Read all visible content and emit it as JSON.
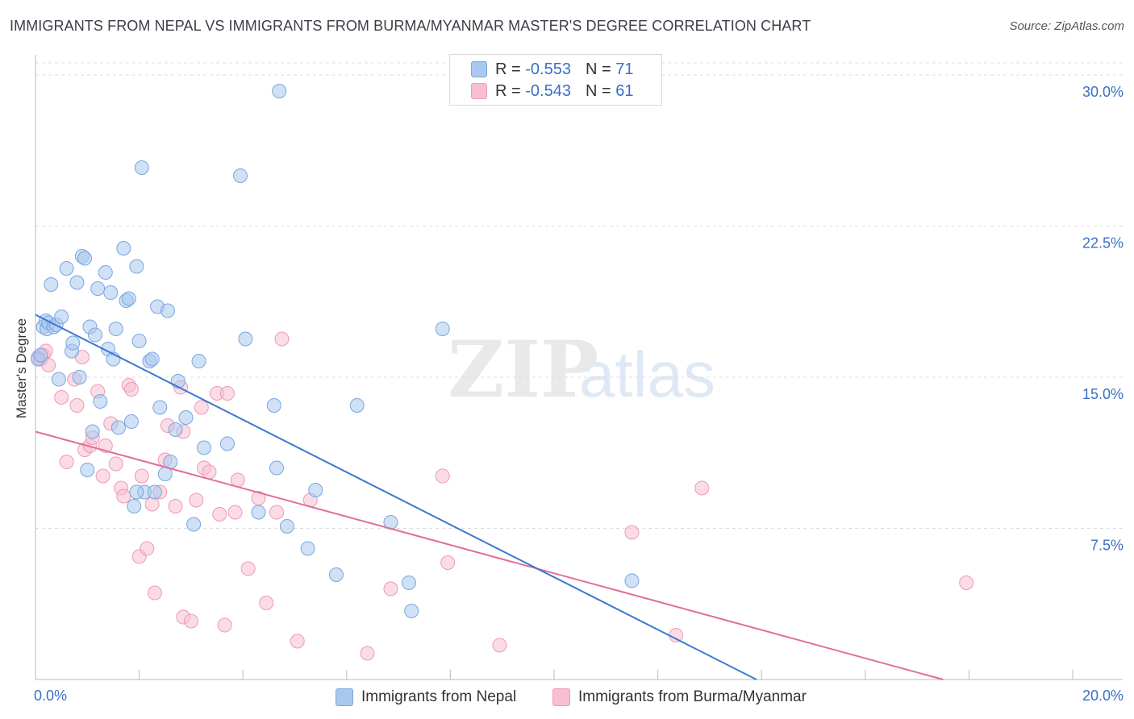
{
  "title": "IMMIGRANTS FROM NEPAL VS IMMIGRANTS FROM BURMA/MYANMAR MASTER'S DEGREE CORRELATION CHART",
  "source": "Source: ZipAtlas.com",
  "watermark": {
    "zip": "ZIP",
    "atlas": "atlas"
  },
  "legend": {
    "nepal": {
      "r_label": "R =",
      "r_value": "-0.553",
      "n_label": "N =",
      "n_value": "71"
    },
    "burma": {
      "r_label": "R =",
      "r_value": "-0.543",
      "n_label": "N =",
      "n_value": "61"
    }
  },
  "bottom_legend": {
    "nepal": "Immigrants from Nepal",
    "burma": "Immigrants from Burma/Myanmar"
  },
  "colors": {
    "nepal_fill": "#aac8ef",
    "nepal_stroke": "#7aa6e0",
    "nepal_line": "#3a78d2",
    "burma_fill": "#f7bfd0",
    "burma_stroke": "#ee9ab6",
    "burma_line": "#e06f9a",
    "grid": "#dddddd",
    "tick_label": "#3a6fc4"
  },
  "chart_data": {
    "type": "scatter",
    "title": "IMMIGRANTS FROM NEPAL VS IMMIGRANTS FROM BURMA/MYANMAR MASTER'S DEGREE CORRELATION CHART",
    "xlabel": "",
    "ylabel": "Master's Degree",
    "xlim": [
      0,
      20
    ],
    "ylim": [
      0,
      31
    ],
    "x_tick_labels": [
      "0.0%",
      "20.0%"
    ],
    "y_ticks": [
      7.5,
      15.0,
      22.5,
      30.0
    ],
    "y_tick_labels": [
      "7.5%",
      "15.0%",
      "22.5%",
      "30.0%"
    ],
    "grid": true,
    "legend_position": "top-center",
    "series": [
      {
        "name": "Immigrants from Nepal",
        "trend": {
          "x": [
            0.0,
            13.9
          ],
          "y": [
            18.1,
            0.0
          ]
        },
        "points": [
          [
            0.05,
            15.9
          ],
          [
            0.1,
            16.1
          ],
          [
            0.15,
            17.5
          ],
          [
            0.2,
            17.8
          ],
          [
            0.22,
            17.4
          ],
          [
            0.25,
            17.7
          ],
          [
            0.3,
            19.6
          ],
          [
            0.35,
            17.5
          ],
          [
            0.4,
            17.6
          ],
          [
            0.45,
            14.9
          ],
          [
            0.5,
            18.0
          ],
          [
            0.6,
            20.4
          ],
          [
            0.7,
            16.3
          ],
          [
            0.72,
            16.7
          ],
          [
            0.8,
            19.7
          ],
          [
            0.85,
            15.0
          ],
          [
            0.9,
            21.0
          ],
          [
            0.95,
            20.9
          ],
          [
            1.0,
            10.4
          ],
          [
            1.05,
            17.5
          ],
          [
            1.1,
            12.3
          ],
          [
            1.15,
            17.1
          ],
          [
            1.2,
            19.4
          ],
          [
            1.25,
            13.8
          ],
          [
            1.35,
            20.2
          ],
          [
            1.4,
            16.4
          ],
          [
            1.45,
            19.2
          ],
          [
            1.5,
            15.9
          ],
          [
            1.55,
            17.4
          ],
          [
            1.6,
            12.5
          ],
          [
            1.7,
            21.4
          ],
          [
            1.75,
            18.8
          ],
          [
            1.8,
            18.9
          ],
          [
            1.85,
            12.8
          ],
          [
            1.9,
            8.6
          ],
          [
            1.95,
            20.5
          ],
          [
            2.0,
            16.8
          ],
          [
            2.1,
            9.3
          ],
          [
            2.2,
            15.8
          ],
          [
            2.25,
            15.9
          ],
          [
            2.35,
            18.5
          ],
          [
            2.4,
            13.5
          ],
          [
            2.5,
            10.2
          ],
          [
            2.55,
            18.3
          ],
          [
            2.6,
            10.8
          ],
          [
            2.7,
            12.4
          ],
          [
            2.75,
            14.8
          ],
          [
            2.9,
            13.0
          ],
          [
            3.05,
            7.7
          ],
          [
            3.15,
            15.8
          ],
          [
            3.25,
            11.5
          ],
          [
            3.7,
            11.7
          ],
          [
            4.05,
            16.9
          ],
          [
            4.3,
            8.3
          ],
          [
            4.6,
            13.6
          ],
          [
            4.65,
            10.5
          ],
          [
            4.85,
            7.6
          ],
          [
            5.25,
            6.5
          ],
          [
            5.4,
            9.4
          ],
          [
            5.8,
            5.2
          ],
          [
            6.2,
            13.6
          ],
          [
            6.85,
            7.8
          ],
          [
            7.2,
            4.8
          ],
          [
            7.25,
            3.4
          ],
          [
            7.85,
            17.4
          ],
          [
            11.5,
            4.9
          ],
          [
            2.05,
            25.4
          ],
          [
            3.95,
            25.0
          ],
          [
            4.7,
            29.2
          ],
          [
            1.95,
            9.3
          ],
          [
            2.3,
            9.3
          ]
        ]
      },
      {
        "name": "Immigrants from Burma/Myanmar",
        "trend": {
          "x": [
            0.0,
            17.5
          ],
          "y": [
            12.3,
            0.0
          ]
        },
        "points": [
          [
            0.05,
            16.0
          ],
          [
            0.1,
            15.9
          ],
          [
            0.15,
            16.1
          ],
          [
            0.2,
            16.3
          ],
          [
            0.25,
            15.6
          ],
          [
            0.5,
            14.0
          ],
          [
            0.6,
            10.8
          ],
          [
            0.75,
            14.9
          ],
          [
            0.8,
            13.6
          ],
          [
            0.9,
            16.0
          ],
          [
            0.95,
            11.4
          ],
          [
            1.05,
            11.6
          ],
          [
            1.1,
            12.0
          ],
          [
            1.2,
            14.3
          ],
          [
            1.3,
            10.1
          ],
          [
            1.35,
            11.6
          ],
          [
            1.45,
            12.7
          ],
          [
            1.55,
            10.7
          ],
          [
            1.65,
            9.5
          ],
          [
            1.7,
            9.1
          ],
          [
            1.8,
            14.6
          ],
          [
            1.85,
            14.4
          ],
          [
            2.0,
            6.1
          ],
          [
            2.05,
            10.1
          ],
          [
            2.15,
            6.5
          ],
          [
            2.25,
            8.7
          ],
          [
            2.3,
            4.3
          ],
          [
            2.4,
            9.3
          ],
          [
            2.5,
            10.9
          ],
          [
            2.55,
            12.6
          ],
          [
            2.7,
            8.6
          ],
          [
            2.8,
            14.5
          ],
          [
            2.85,
            3.1
          ],
          [
            3.0,
            2.9
          ],
          [
            3.1,
            8.9
          ],
          [
            3.2,
            13.5
          ],
          [
            3.25,
            10.5
          ],
          [
            3.35,
            10.3
          ],
          [
            3.5,
            14.2
          ],
          [
            3.55,
            8.2
          ],
          [
            3.65,
            2.7
          ],
          [
            3.7,
            14.2
          ],
          [
            3.85,
            8.3
          ],
          [
            3.9,
            9.9
          ],
          [
            4.1,
            5.5
          ],
          [
            4.3,
            9.0
          ],
          [
            4.45,
            3.8
          ],
          [
            4.65,
            8.3
          ],
          [
            4.75,
            16.9
          ],
          [
            5.05,
            1.9
          ],
          [
            5.3,
            8.9
          ],
          [
            6.4,
            1.3
          ],
          [
            6.85,
            4.5
          ],
          [
            7.85,
            10.1
          ],
          [
            7.95,
            5.8
          ],
          [
            8.95,
            1.7
          ],
          [
            11.5,
            7.3
          ],
          [
            12.35,
            2.2
          ],
          [
            12.85,
            9.5
          ],
          [
            17.95,
            4.8
          ],
          [
            2.85,
            12.3
          ]
        ]
      }
    ]
  }
}
